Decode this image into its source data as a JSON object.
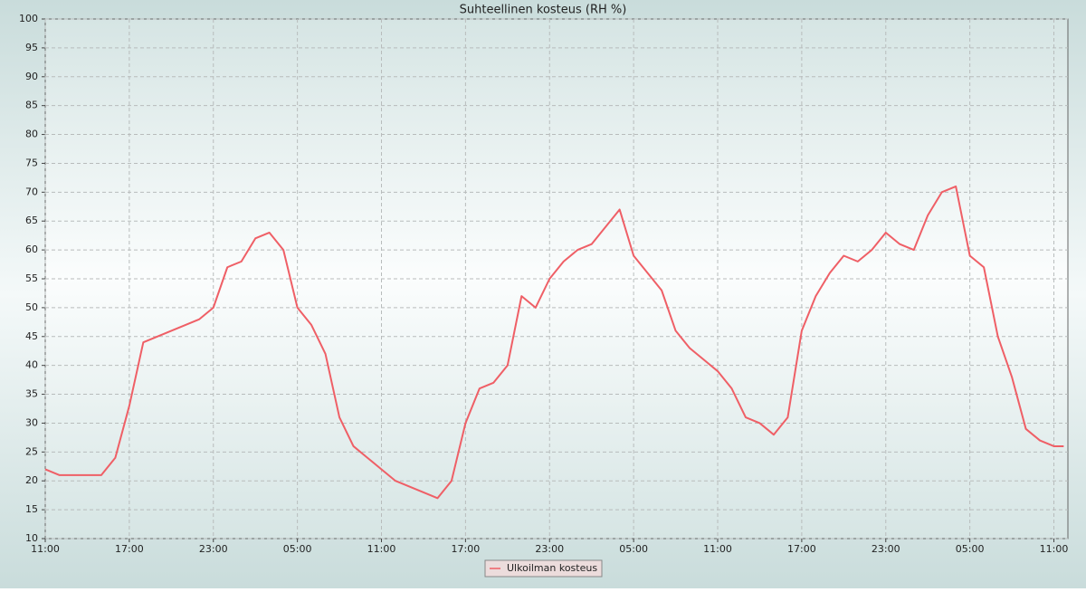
{
  "chart_data": {
    "type": "line",
    "title": "Suhteellinen kosteus (RH %)",
    "x": [
      0,
      1,
      2,
      3,
      4,
      5,
      6,
      7,
      8,
      9,
      10,
      11,
      12,
      13,
      14,
      15,
      16,
      17,
      18,
      19,
      20,
      21,
      22,
      23,
      24,
      25,
      26,
      27,
      28,
      29,
      30,
      31,
      32,
      33,
      34,
      35,
      36,
      37,
      38,
      39,
      40,
      41,
      42,
      43,
      44,
      45,
      46,
      47,
      48,
      49,
      50,
      51,
      52,
      53,
      54,
      55,
      56,
      57,
      58,
      59,
      60,
      61,
      62,
      63,
      64,
      65,
      66,
      67,
      68,
      69,
      70,
      71,
      72,
      72.7
    ],
    "series": [
      {
        "name": "Ulkoilman kosteus",
        "color": "#ef5f66",
        "values": [
          22,
          21,
          21,
          21,
          21,
          24,
          33,
          44,
          45,
          46,
          47,
          48,
          50,
          57,
          58,
          62,
          63,
          60,
          50,
          47,
          42,
          31,
          26,
          24,
          22,
          20,
          19,
          18,
          17,
          20,
          30,
          36,
          37,
          40,
          52,
          50,
          55,
          58,
          60,
          61,
          64,
          67,
          59,
          56,
          53,
          46,
          43,
          41,
          39,
          36,
          31,
          30,
          28,
          31,
          46,
          52,
          56,
          59,
          58,
          60,
          63,
          61,
          60,
          66,
          70,
          71,
          59,
          57,
          45,
          38,
          29,
          27,
          26,
          26
        ]
      }
    ],
    "xlim": [
      0,
      73
    ],
    "xticks": [
      {
        "value": 0,
        "label": "11:00"
      },
      {
        "value": 6,
        "label": "17:00"
      },
      {
        "value": 12,
        "label": "23:00"
      },
      {
        "value": 18,
        "label": "05:00"
      },
      {
        "value": 24,
        "label": "11:00"
      },
      {
        "value": 30,
        "label": "17:00"
      },
      {
        "value": 36,
        "label": "23:00"
      },
      {
        "value": 42,
        "label": "05:00"
      },
      {
        "value": 48,
        "label": "11:00"
      },
      {
        "value": 54,
        "label": "17:00"
      },
      {
        "value": 60,
        "label": "23:00"
      },
      {
        "value": 66,
        "label": "05:00"
      },
      {
        "value": 72,
        "label": "11:00"
      }
    ],
    "ylim": [
      10,
      100
    ],
    "yticks": [
      10,
      15,
      20,
      25,
      30,
      35,
      40,
      45,
      50,
      55,
      60,
      65,
      70,
      75,
      80,
      85,
      90,
      95,
      100
    ],
    "grid": true
  }
}
